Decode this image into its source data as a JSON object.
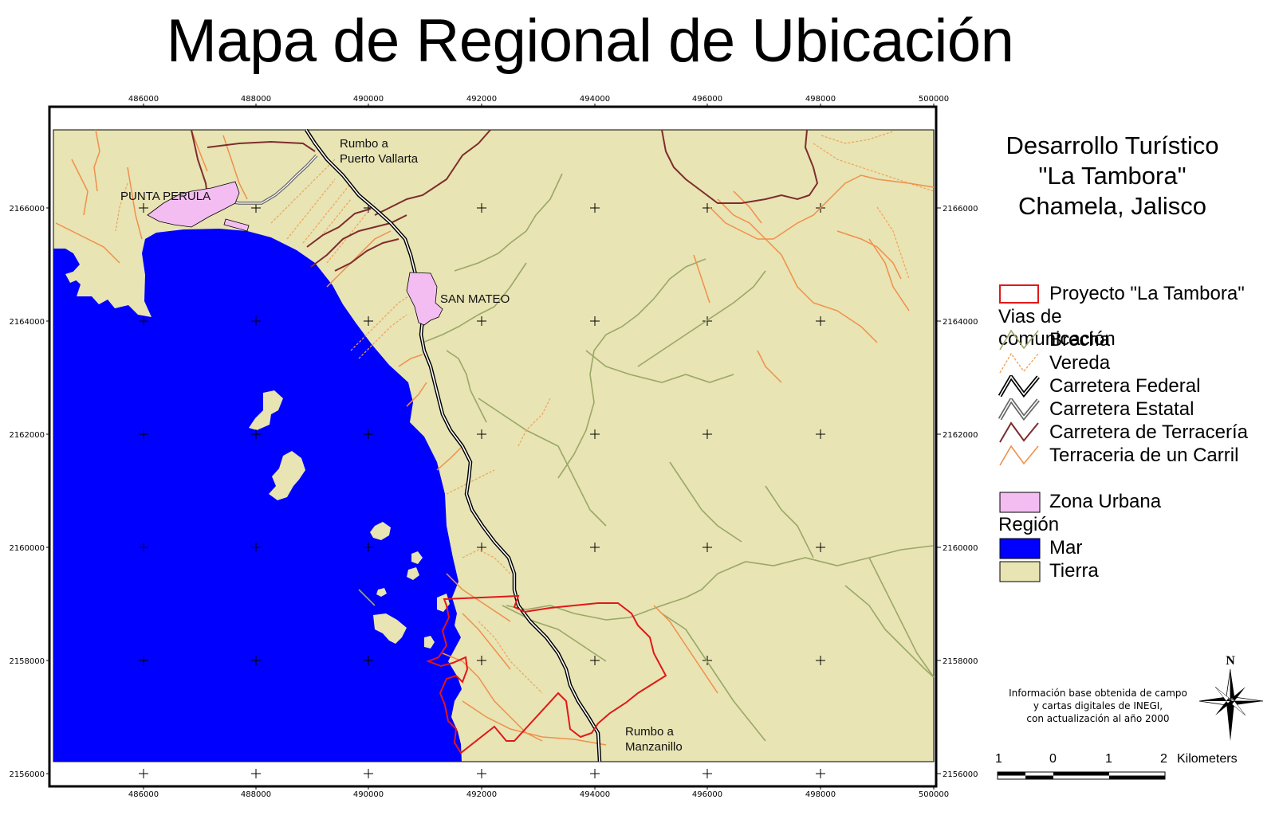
{
  "title": "Mapa de Regional de Ubicación",
  "project": {
    "line1": "Desarrollo Turístico",
    "line2": "\"La Tambora\"",
    "line3": "Chamela, Jalisco"
  },
  "axes": {
    "x_ticks": [
      "486000",
      "488000",
      "490000",
      "492000",
      "494000",
      "496000",
      "498000",
      "500000"
    ],
    "y_ticks": [
      "2166000",
      "2164000",
      "2162000",
      "2160000",
      "2158000",
      "2156000"
    ]
  },
  "places": {
    "punta_perula": "PUNTA PERULA",
    "san_mateo": "SAN MATEO",
    "rumbo_pv_1": "Rumbo a",
    "rumbo_pv_2": "Puerto Vallarta",
    "rumbo_mz_1": "Rumbo a",
    "rumbo_mz_2": "Manzanillo"
  },
  "legend": {
    "proyecto": "Proyecto \"La Tambora\"",
    "vias_heading": "Vias de comunicación",
    "brecha": "Brecha",
    "vereda": "Vereda",
    "carretera_federal": "Carretera Federal",
    "carretera_estatal": "Carretera Estatal",
    "carretera_terraceria": "Carretera de Terracería",
    "terraceria_carril": "Terraceria de un Carril",
    "zona_urbana": "Zona Urbana",
    "region_heading": "Región",
    "mar": "Mar",
    "tierra": "Tierra"
  },
  "colors": {
    "mar": "#0000ff",
    "tierra": "#e8e4b4",
    "zona_urbana": "#f4bdf2",
    "proyecto": "#e01818",
    "brecha": "#9aa866",
    "vereda": "#f2a25a",
    "terraceria_carril": "#f0904a",
    "carretera_terraceria": "#7e2d2d"
  },
  "source_note": {
    "line1": "Información base obtenida de campo",
    "line2": "y cartas digitales de INEGI,",
    "line3": "con actualización al año 2000"
  },
  "scale": {
    "labels": [
      "1",
      "0",
      "1",
      "2"
    ],
    "unit": "Kilometers"
  },
  "north": "N"
}
